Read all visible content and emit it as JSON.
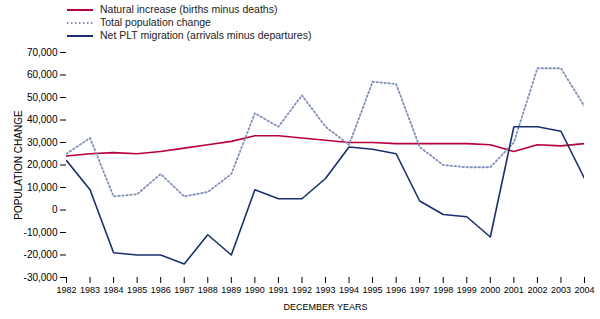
{
  "chart_data": {
    "type": "line",
    "xlabel": "DECEMBER YEARS",
    "ylabel": "POPULATION CHANGE",
    "x": [
      1982,
      1983,
      1984,
      1985,
      1986,
      1987,
      1988,
      1989,
      1990,
      1991,
      1992,
      1993,
      1994,
      1995,
      1996,
      1997,
      1998,
      1999,
      2000,
      2001,
      2002,
      2003,
      2004
    ],
    "series": [
      {
        "name": "Natural increase (births minus deaths)",
        "color": "#b8003a",
        "line_style": "solid",
        "values": [
          24000,
          25000,
          25500,
          25000,
          26000,
          27500,
          29000,
          30500,
          33000,
          33000,
          32000,
          31000,
          30000,
          30000,
          29500,
          29500,
          29500,
          29500,
          29000,
          26000,
          29000,
          28500,
          29500
        ]
      },
      {
        "name": "Total population change",
        "color": "#8090bb",
        "line_style": "dotted",
        "values": [
          25000,
          32000,
          6000,
          7000,
          16000,
          6000,
          8000,
          16000,
          43000,
          37000,
          51000,
          37000,
          29000,
          57000,
          56000,
          28000,
          20000,
          19000,
          19000,
          30000,
          63000,
          63000,
          46000
        ]
      },
      {
        "name": "Net PLT migration (arrivals minus departures)",
        "color": "#1a2f6e",
        "line_style": "solid",
        "values": [
          22000,
          9000,
          -19000,
          -20000,
          -20000,
          -24000,
          -11000,
          -20000,
          9000,
          5000,
          5000,
          14000,
          28000,
          27000,
          25000,
          4000,
          -2000,
          -3000,
          -12000,
          37000,
          37000,
          35000,
          14000
        ]
      }
    ],
    "xlim": [
      1982,
      2004
    ],
    "xticks": [
      1982,
      1983,
      1984,
      1985,
      1986,
      1987,
      1988,
      1989,
      1990,
      1991,
      1992,
      1993,
      1994,
      1995,
      1996,
      1997,
      1998,
      1999,
      2000,
      2001,
      2002,
      2003,
      2004
    ],
    "ylim": [
      -30000,
      70000
    ],
    "yticks": [
      {
        "value": -30000,
        "label": "-30,000"
      },
      {
        "value": -20000,
        "label": "-20,000"
      },
      {
        "value": -10000,
        "label": "-10,000"
      },
      0,
      {
        "value": 10000,
        "label": "10,000"
      },
      {
        "value": 20000,
        "label": "20,000"
      },
      {
        "value": 30000,
        "label": "30,000"
      },
      {
        "value": 40000,
        "label": "40,000"
      },
      {
        "value": 50000,
        "label": "50,000"
      },
      {
        "value": 60000,
        "label": "60,000"
      },
      {
        "value": 70000,
        "label": "70,000"
      }
    ],
    "grid": false,
    "legend": "upper left"
  }
}
